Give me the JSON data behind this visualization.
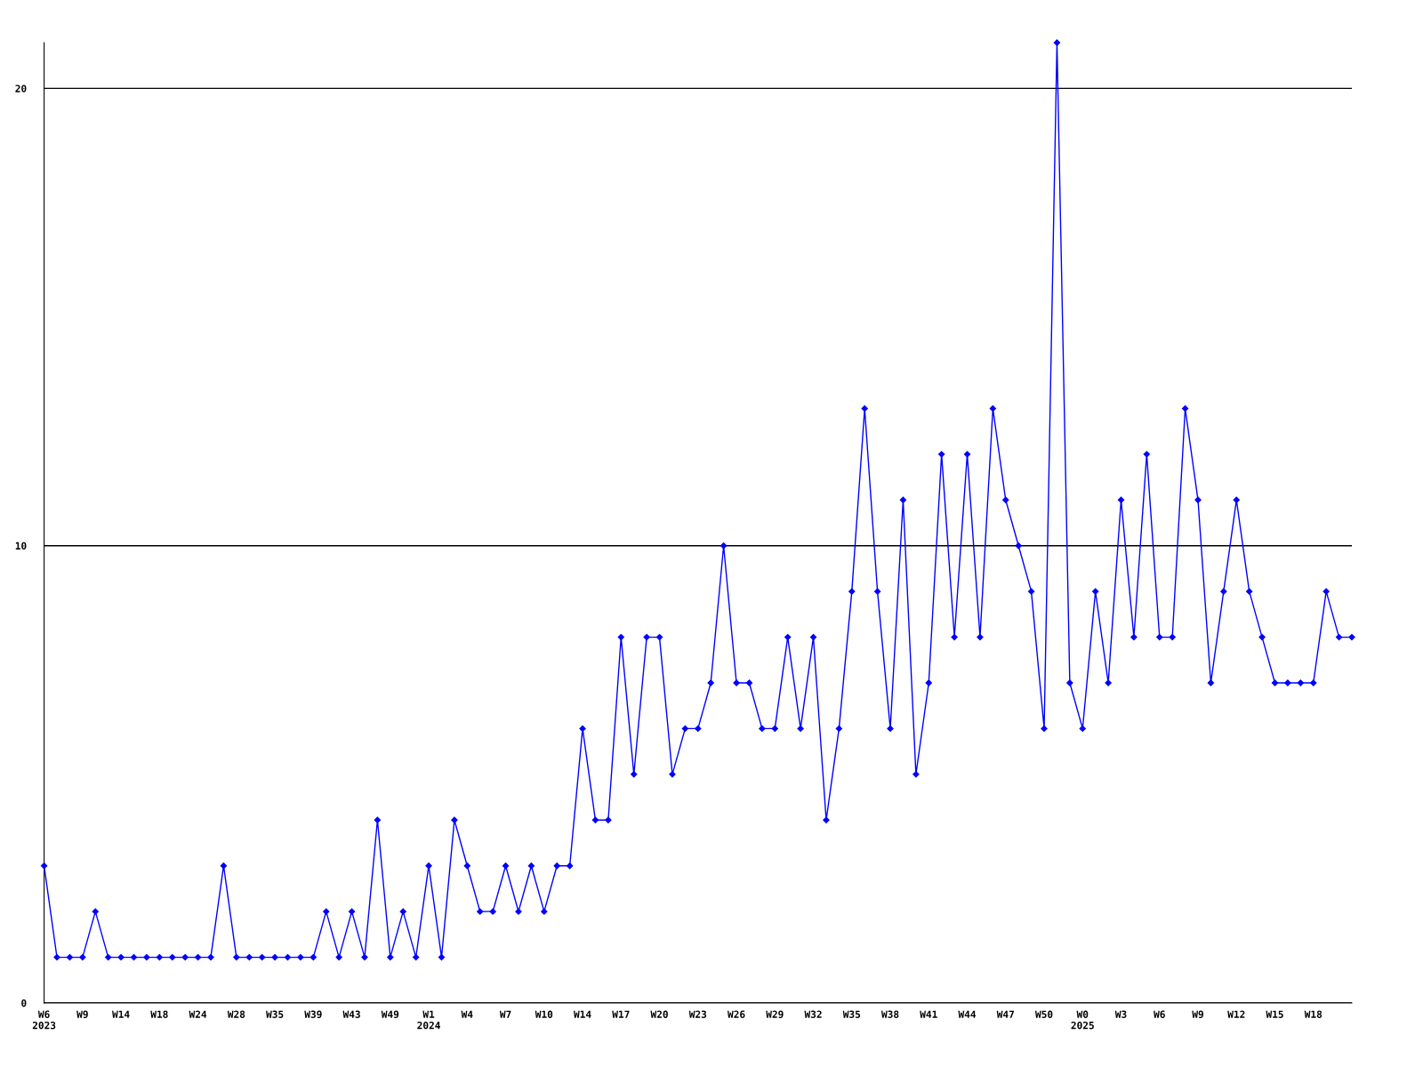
{
  "chart_data": {
    "type": "line",
    "categories": [
      "W6\n2023",
      null,
      null,
      "W9",
      null,
      null,
      "W14",
      null,
      null,
      "W18",
      null,
      null,
      "W24",
      null,
      null,
      "W28",
      null,
      null,
      "W35",
      null,
      null,
      "W39",
      null,
      null,
      "W43",
      null,
      null,
      "W49",
      null,
      null,
      "W1\n2024",
      null,
      null,
      "W4",
      null,
      null,
      "W7",
      null,
      null,
      "W10",
      null,
      null,
      "W14",
      null,
      null,
      "W17",
      null,
      null,
      "W20",
      null,
      null,
      "W23",
      null,
      null,
      "W26",
      null,
      null,
      "W29",
      null,
      null,
      "W32",
      null,
      null,
      "W35",
      null,
      null,
      "W38",
      null,
      null,
      "W41",
      null,
      null,
      "W44",
      null,
      null,
      "W47",
      null,
      null,
      "W50",
      null,
      null,
      "W0\n2025",
      null,
      null,
      "W3",
      null,
      null,
      "W6",
      null,
      null,
      "W9",
      null,
      null,
      "W12",
      null,
      null,
      "W15",
      null,
      null,
      "W18",
      null,
      null,
      null
    ],
    "series": [
      {
        "color": "#0000ff",
        "values": [
          3,
          1,
          1,
          1,
          2,
          1,
          1,
          1,
          1,
          1,
          1,
          1,
          1,
          1,
          3,
          1,
          1,
          1,
          1,
          1,
          1,
          1,
          2,
          1,
          2,
          1,
          4,
          1,
          2,
          1,
          3,
          1,
          4,
          3,
          2,
          2,
          3,
          2,
          3,
          2,
          3,
          3,
          6,
          4,
          4,
          8,
          5,
          8,
          8,
          5,
          6,
          6,
          7,
          10,
          7,
          7,
          6,
          6,
          8,
          6,
          8,
          4,
          6,
          9,
          13,
          9,
          6,
          11,
          5,
          7,
          12,
          8,
          12,
          8,
          13,
          11,
          10,
          9,
          6,
          21,
          7,
          6,
          9,
          7,
          11,
          8,
          12,
          8,
          8,
          13,
          11,
          7,
          9,
          11,
          9,
          8,
          7,
          7,
          7,
          7,
          9,
          8,
          8
        ]
      }
    ],
    "ylim": [
      0,
      21
    ],
    "yticks": [
      0,
      10,
      20
    ],
    "grid": "y",
    "marker": "diamond",
    "line_style": "solid"
  }
}
